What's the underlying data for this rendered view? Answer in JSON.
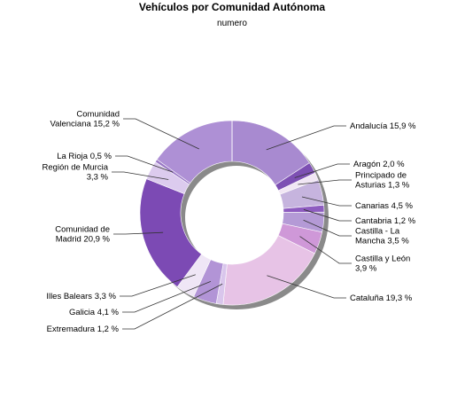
{
  "chart_data": {
    "type": "pie",
    "variant": "donut",
    "title": "Vehículos por Comunidad Autónoma",
    "subtitle": "numero",
    "unit": "%",
    "slices": [
      {
        "name": "Andalucía",
        "value": 15.9,
        "color": "#a88ad0",
        "label_lines": [
          "Andalucía 15,9 %"
        ]
      },
      {
        "name": "Aragón",
        "value": 2.0,
        "color": "#7d4fb3",
        "label_lines": [
          "Aragón 2,0 %"
        ]
      },
      {
        "name": "Principado de Asturias",
        "value": 1.3,
        "color": "#f1e6f4",
        "label_lines": [
          "Principado de",
          "Asturias 1,3 %"
        ]
      },
      {
        "name": "Canarias",
        "value": 4.5,
        "color": "#c6b4de",
        "label_lines": [
          "Canarias 4,5 %"
        ]
      },
      {
        "name": "Cantabria",
        "value": 1.2,
        "color": "#8e5cc0",
        "label_lines": [
          "Cantabria 1,2 %"
        ]
      },
      {
        "name": "Castilla - La Mancha",
        "value": 3.5,
        "color": "#b49ad6",
        "label_lines": [
          "Castilla - La",
          "Mancha 3,5 %"
        ]
      },
      {
        "name": "Castilla y León",
        "value": 3.9,
        "color": "#cf98d8",
        "label_lines": [
          "Castilla y León",
          "3,9 %"
        ]
      },
      {
        "name": "Cataluña",
        "value": 19.3,
        "color": "#e7c3e6",
        "label_lines": [
          "Cataluña 19,3 %"
        ]
      },
      {
        "name": "Extremadura",
        "value": 1.2,
        "color": "#d9c6ec",
        "label_lines": [
          "Extremadura 1,2 %"
        ]
      },
      {
        "name": "Galicia",
        "value": 4.1,
        "color": "#b294d6",
        "label_lines": [
          "Galicia 4,1 %"
        ]
      },
      {
        "name": "Illes Balears",
        "value": 3.3,
        "color": "#efe6f6",
        "label_lines": [
          "Illes Balears 3,3 %"
        ]
      },
      {
        "name": "Comunidad de Madrid",
        "value": 20.9,
        "color": "#7c4ab4",
        "label_lines": [
          "Comunidad de",
          "Madrid 20,9 %"
        ]
      },
      {
        "name": "Región de Murcia",
        "value": 3.3,
        "color": "#dccbee",
        "label_lines": [
          "Región de Murcia",
          "3,3 %"
        ]
      },
      {
        "name": "La Rioja",
        "value": 0.5,
        "color": "#9a78c6",
        "label_lines": [
          "La Rioja 0,5 %"
        ]
      },
      {
        "name": "Comunidad Valenciana",
        "value": 15.2,
        "color": "#ae90d5",
        "label_lines": [
          "Comunidad",
          "Valenciana 15,2 %"
        ]
      }
    ]
  }
}
